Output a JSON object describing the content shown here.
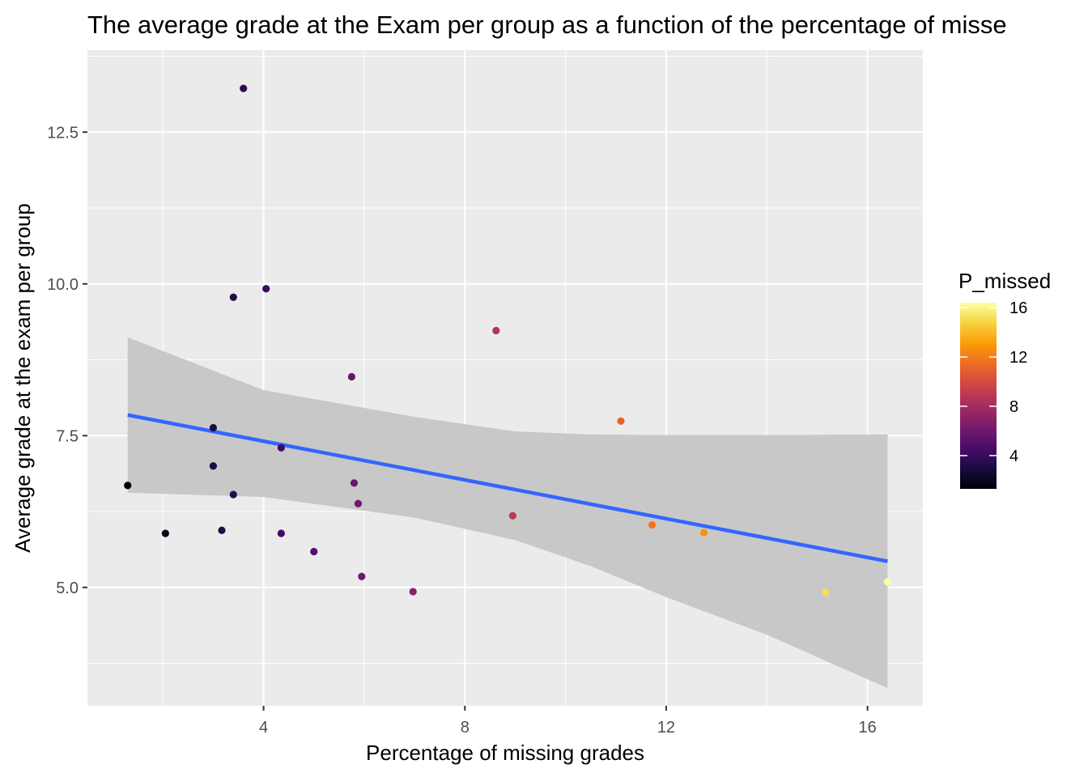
{
  "chart_data": {
    "type": "scatter",
    "title": "The average grade at the Exam per group as a function of the percentage of misse",
    "xlabel": "Percentage of missing grades",
    "ylabel": "Average grade at the exam per group",
    "xlim": [
      0.5,
      17.1
    ],
    "ylim": [
      3.05,
      13.85
    ],
    "x_ticks": [
      4,
      8,
      12,
      16
    ],
    "x_tick_labels": [
      "4",
      "8",
      "12",
      "16"
    ],
    "y_ticks": [
      5.0,
      7.5,
      10.0,
      12.5
    ],
    "y_tick_labels": [
      "5.0",
      "7.5",
      "10.0",
      "12.5"
    ],
    "grid": true,
    "background": "#ebebeb",
    "points": [
      {
        "x": 1.3,
        "y": 6.68
      },
      {
        "x": 2.05,
        "y": 5.89
      },
      {
        "x": 3.0,
        "y": 7.63
      },
      {
        "x": 3.0,
        "y": 7.0
      },
      {
        "x": 3.17,
        "y": 5.94
      },
      {
        "x": 3.4,
        "y": 9.78
      },
      {
        "x": 3.4,
        "y": 6.53
      },
      {
        "x": 3.6,
        "y": 13.22
      },
      {
        "x": 4.05,
        "y": 9.92
      },
      {
        "x": 4.35,
        "y": 7.3
      },
      {
        "x": 4.35,
        "y": 5.89
      },
      {
        "x": 5.0,
        "y": 5.59
      },
      {
        "x": 5.75,
        "y": 8.47
      },
      {
        "x": 5.8,
        "y": 6.72
      },
      {
        "x": 5.88,
        "y": 6.38
      },
      {
        "x": 5.95,
        "y": 5.18
      },
      {
        "x": 6.97,
        "y": 4.93
      },
      {
        "x": 8.62,
        "y": 9.23
      },
      {
        "x": 8.95,
        "y": 6.18
      },
      {
        "x": 11.1,
        "y": 7.74
      },
      {
        "x": 11.72,
        "y": 6.03
      },
      {
        "x": 12.75,
        "y": 5.9
      },
      {
        "x": 15.17,
        "y": 4.92
      },
      {
        "x": 16.4,
        "y": 5.09
      }
    ],
    "trend": {
      "method": "linear",
      "line_color": "#3366ff",
      "x": [
        1.3,
        16.4
      ],
      "y": [
        7.84,
        5.43
      ]
    },
    "confidence_band": {
      "fill": "#c8c8c8",
      "x": [
        1.3,
        4.0,
        7.0,
        9.0,
        10.5,
        12.0,
        14.0,
        16.4
      ],
      "upper": [
        9.12,
        8.25,
        7.81,
        7.57,
        7.52,
        7.51,
        7.51,
        7.52
      ],
      "lower": [
        6.56,
        6.49,
        6.15,
        5.78,
        5.35,
        4.84,
        4.22,
        3.34
      ]
    },
    "color_scale": {
      "name": "P_missed",
      "min": 1.3,
      "max": 16.4,
      "ticks": [
        4,
        8,
        12,
        16
      ],
      "tick_labels": [
        "4",
        "8",
        "12",
        "16"
      ],
      "stops": [
        "#000004",
        "#1b0c41",
        "#4a0c6b",
        "#781c6d",
        "#a52c60",
        "#cf4446",
        "#ed6925",
        "#fb9b06",
        "#f7d13d",
        "#fcffa4"
      ]
    }
  }
}
